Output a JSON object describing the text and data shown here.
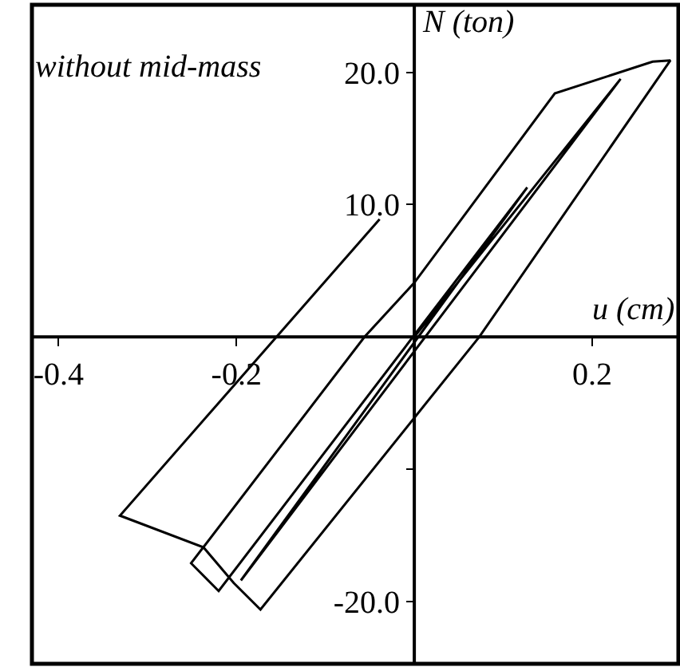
{
  "chart_data": {
    "type": "line",
    "xlabel": "u (cm)",
    "ylabel": "N (ton)",
    "annotations": [
      "without mid-mass"
    ],
    "xlim": [
      -0.43,
      0.297
    ],
    "ylim": [
      -24.7,
      25.1
    ],
    "xticks": [
      -0.4,
      -0.2,
      0.2
    ],
    "yticks": [
      {
        "value": -20,
        "label": "-20.0"
      },
      {
        "value": -10,
        "label": null
      },
      {
        "value": 10,
        "label": "10.0"
      },
      {
        "value": 20,
        "label": "20.0"
      }
    ],
    "grid": false,
    "marker": "none",
    "line_style": "solid",
    "series": [
      {
        "color": "#000000",
        "x": [
          0,
          0.232,
          -0.195,
          0.127,
          -0.22,
          -0.251,
          -0.056,
          0,
          0.158,
          0.268,
          0.288,
          0.073,
          -0.173,
          -0.203,
          -0.237,
          -0.331,
          -0.039
        ],
        "values": [
          0,
          19.5,
          -18.4,
          11.3,
          -19.2,
          -17.1,
          0,
          4.1,
          18.4,
          20.8,
          20.9,
          0,
          -20.6,
          -18.6,
          -15.9,
          -13.5,
          8.9
        ]
      }
    ]
  }
}
